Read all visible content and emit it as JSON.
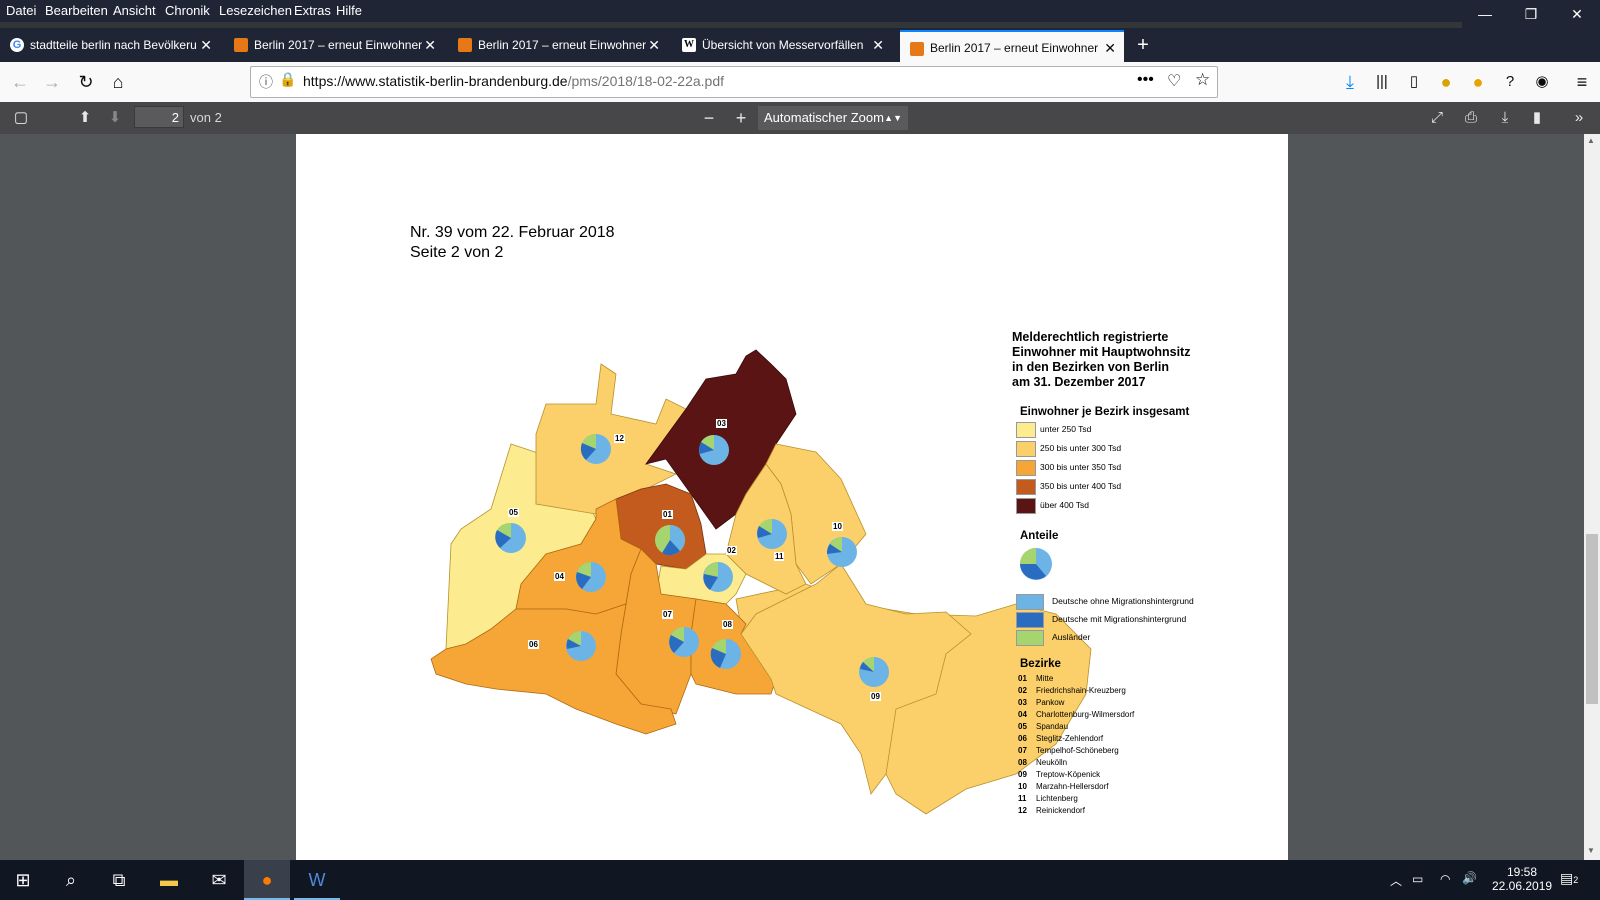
{
  "menu": [
    "Datei",
    "Bearbeiten",
    "Ansicht",
    "Chronik",
    "Lesezeichen",
    "Extras",
    "Hilfe"
  ],
  "tabs": [
    {
      "label": "stadtteile berlin nach Bevölkeru",
      "icon": "google-icon"
    },
    {
      "label": "Berlin 2017 – erneut Einwohner",
      "icon": "pdf-icon"
    },
    {
      "label": "Berlin 2017 – erneut Einwohner",
      "icon": "pdf-icon"
    },
    {
      "label": "Übersicht von Messervorfällen",
      "icon": "wikipedia-icon"
    },
    {
      "label": "Berlin 2017 – erneut Einwohner",
      "icon": "pdf-icon",
      "active": true
    }
  ],
  "url": {
    "host": "https://www.statistik-berlin-brandenburg.de",
    "path": "/pms/2018/18-02-22a.pdf"
  },
  "pdf_toolbar": {
    "page": "2",
    "of": "von 2",
    "zoom": "Automatischer Zoom"
  },
  "doc": {
    "line1": "Nr. 39 vom 22. Februar 2018",
    "line2": "Seite 2 von 2",
    "map_title": [
      "Melderechtlich registrierte",
      "Einwohner mit Hauptwohnsitz",
      "in den Bezirken von Berlin",
      "am 31. Dezember 2017"
    ],
    "legend_pop_title": "Einwohner je Bezirk insgesamt",
    "pop_classes": [
      {
        "label": "unter 250 Tsd",
        "color": "#fcec8f"
      },
      {
        "label": "250 bis unter 300 Tsd",
        "color": "#fbd06a"
      },
      {
        "label": "300 bis unter 350 Tsd",
        "color": "#f6a637"
      },
      {
        "label": "350 bis unter 400 Tsd",
        "color": "#c35a1e"
      },
      {
        "label": "über 400 Tsd",
        "color": "#5a1414"
      }
    ],
    "legend_share_title": "Anteile",
    "shares": [
      {
        "label": "Deutsche ohne Migrationshintergrund",
        "color": "#6cb4e6"
      },
      {
        "label": "Deutsche mit Migrationshintergrund",
        "color": "#2a6cc0"
      },
      {
        "label": "Ausländer",
        "color": "#a6d46e"
      }
    ],
    "legend_districts_title": "Bezirke",
    "districts": [
      {
        "code": "01",
        "name": "Mitte"
      },
      {
        "code": "02",
        "name": "Friedrichshain-Kreuzberg"
      },
      {
        "code": "03",
        "name": "Pankow"
      },
      {
        "code": "04",
        "name": "Charlottenburg-Wilmersdorf"
      },
      {
        "code": "05",
        "name": "Spandau"
      },
      {
        "code": "06",
        "name": "Steglitz-Zehlendorf"
      },
      {
        "code": "07",
        "name": "Tempelhof-Schöneberg"
      },
      {
        "code": "08",
        "name": "Neukölln"
      },
      {
        "code": "09",
        "name": "Treptow-Köpenick"
      },
      {
        "code": "10",
        "name": "Marzahn-Hellersdorf"
      },
      {
        "code": "11",
        "name": "Lichtenberg"
      },
      {
        "code": "12",
        "name": "Reinickendorf"
      }
    ]
  },
  "taskbar": {
    "time": "19:58",
    "date": "22.06.2019",
    "notifications": "2"
  }
}
